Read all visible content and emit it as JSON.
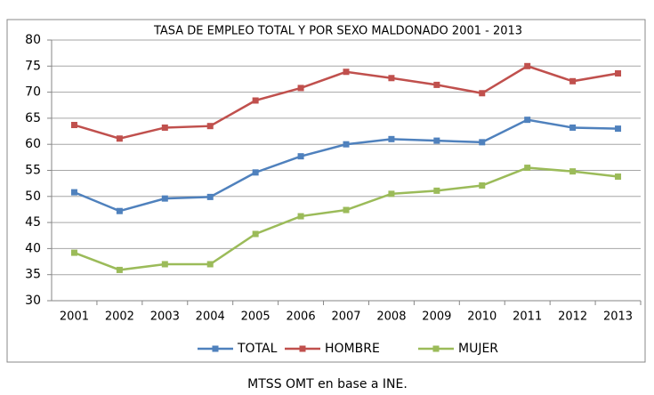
{
  "chart_data": {
    "type": "line",
    "title": "TASA DE EMPLEO TOTAL Y POR SEXO MALDONADO 2001 - 2013",
    "source": "MTSS OMT en base a INE.",
    "categories": [
      "2001",
      "2002",
      "2003",
      "2004",
      "2005",
      "2006",
      "2007",
      "2008",
      "2009",
      "2010",
      "2011",
      "2012",
      "2013"
    ],
    "series": [
      {
        "name": "TOTAL",
        "color": "#4f81bd",
        "values": [
          50.8,
          47.2,
          49.6,
          49.9,
          54.6,
          57.7,
          60.0,
          61.0,
          60.7,
          60.4,
          64.7,
          63.2,
          63.0
        ]
      },
      {
        "name": "HOMBRE",
        "color": "#c0504d",
        "values": [
          63.7,
          61.1,
          63.2,
          63.5,
          68.4,
          70.8,
          73.9,
          72.7,
          71.4,
          69.8,
          75.0,
          72.1,
          73.6
        ]
      },
      {
        "name": "MUJER",
        "color": "#9bbb59",
        "values": [
          39.2,
          35.9,
          37.0,
          37.0,
          42.8,
          46.2,
          47.4,
          50.5,
          51.1,
          52.1,
          55.5,
          54.8,
          53.8
        ]
      }
    ],
    "ylim": [
      30,
      80
    ],
    "yticks": [
      30,
      35,
      40,
      45,
      50,
      55,
      60,
      65,
      70,
      75,
      80
    ],
    "grid": true,
    "legend": "bottom"
  }
}
